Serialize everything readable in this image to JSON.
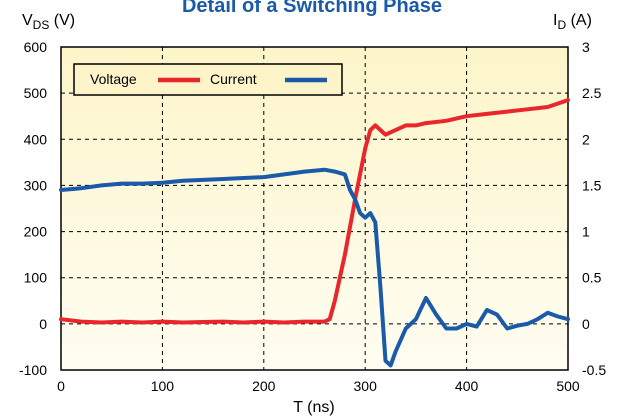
{
  "chart_data": {
    "type": "line",
    "title": "Detail of a Switching Phase",
    "xlabel": "T (ns)",
    "ylabel_left": {
      "main": "V",
      "sub": "DS",
      "unit": " (V)"
    },
    "ylabel_right": {
      "main": "I",
      "sub": "D",
      "unit": " (A)"
    },
    "xlim": [
      0,
      500
    ],
    "ylim_left": [
      -100,
      600
    ],
    "ylim_right": [
      -0.5,
      3
    ],
    "x_ticks": [
      "0",
      "100",
      "200",
      "300",
      "400",
      "500"
    ],
    "y_left_ticks": [
      "-100",
      "0",
      "100",
      "200",
      "300",
      "400",
      "500",
      "600"
    ],
    "y_right_ticks": [
      "-0.5",
      "0",
      "0.5",
      "1",
      "1.5",
      "2",
      "2.5",
      "3"
    ],
    "grid": true,
    "legend_position": "top-left",
    "series": [
      {
        "name": "Voltage",
        "axis": "left",
        "color": "#e8262b",
        "x": [
          0,
          20,
          40,
          60,
          80,
          100,
          120,
          140,
          160,
          180,
          200,
          220,
          240,
          260,
          265,
          270,
          280,
          290,
          300,
          305,
          310,
          320,
          330,
          340,
          350,
          360,
          380,
          400,
          420,
          440,
          460,
          480,
          500
        ],
        "y": [
          10,
          5,
          3,
          5,
          3,
          5,
          3,
          4,
          5,
          3,
          5,
          3,
          5,
          5,
          10,
          50,
          150,
          270,
          380,
          420,
          430,
          410,
          420,
          430,
          430,
          435,
          440,
          450,
          455,
          460,
          465,
          470,
          485
        ]
      },
      {
        "name": "Current",
        "axis": "right",
        "color": "#1a5aa8",
        "x": [
          0,
          20,
          40,
          60,
          80,
          100,
          120,
          140,
          160,
          180,
          200,
          220,
          240,
          260,
          270,
          280,
          285,
          290,
          295,
          300,
          305,
          310,
          315,
          320,
          325,
          330,
          340,
          350,
          360,
          370,
          380,
          390,
          400,
          410,
          420,
          430,
          440,
          450,
          460,
          470,
          480,
          490,
          500
        ],
        "y": [
          1.45,
          1.47,
          1.5,
          1.52,
          1.52,
          1.53,
          1.55,
          1.56,
          1.57,
          1.58,
          1.59,
          1.62,
          1.65,
          1.67,
          1.65,
          1.62,
          1.45,
          1.35,
          1.2,
          1.15,
          1.2,
          1.1,
          0.4,
          -0.4,
          -0.45,
          -0.3,
          -0.05,
          0.05,
          0.28,
          0.1,
          -0.05,
          -0.05,
          0.0,
          -0.03,
          0.15,
          0.1,
          -0.05,
          -0.02,
          0.0,
          0.05,
          0.12,
          0.08,
          0.05
        ]
      }
    ]
  }
}
